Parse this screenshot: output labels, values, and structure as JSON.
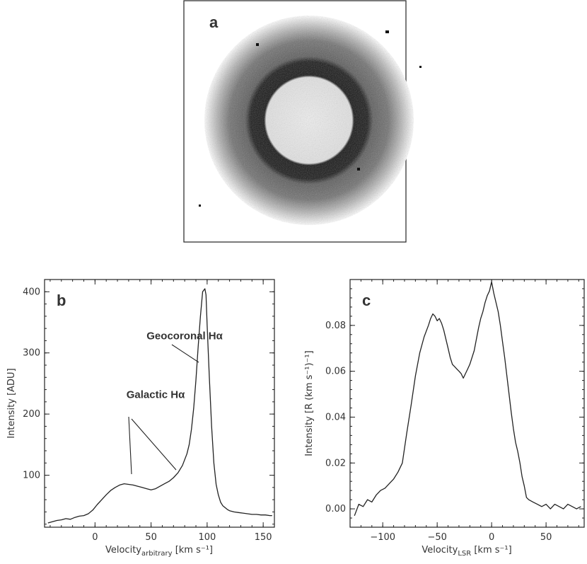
{
  "panels": {
    "a": {
      "label": "a"
    },
    "b": {
      "label": "b"
    },
    "c": {
      "label": "c"
    }
  },
  "chart_data": [
    {
      "panel": "b",
      "type": "line",
      "ylabel": "Intensity [ADU]",
      "xlabel_main": "Velocity",
      "xlabel_sub": "arbitrary",
      "xlabel_unit": "[km s⁻¹]",
      "xlim": [
        -45,
        160
      ],
      "ylim": [
        15,
        420
      ],
      "xticks": [
        0,
        50,
        100,
        150
      ],
      "yticks": [
        100,
        200,
        300,
        400
      ],
      "annotations": [
        {
          "text": "Geocoronal Hα",
          "x": 46,
          "y": 322
        },
        {
          "text": "Galactic Hα",
          "x": 28,
          "y": 226
        }
      ],
      "series": [
        {
          "x": [
            -42,
            -38,
            -34,
            -30,
            -26,
            -22,
            -18,
            -14,
            -10,
            -6,
            -2,
            2,
            6,
            10,
            14,
            18,
            22,
            26,
            30,
            34,
            38,
            42,
            46,
            50,
            54,
            58,
            62,
            66,
            70,
            74,
            78,
            82,
            84,
            86,
            88,
            90,
            92,
            94,
            96,
            98,
            99,
            100,
            102,
            104,
            106,
            108,
            110,
            112,
            114,
            116,
            118,
            120,
            124,
            128,
            132,
            136,
            140,
            144,
            148,
            152,
            156,
            158
          ],
          "y": [
            22,
            24,
            26,
            27,
            29,
            28,
            31,
            33,
            34,
            37,
            43,
            52,
            60,
            68,
            75,
            80,
            84,
            86,
            85,
            84,
            82,
            80,
            78,
            76,
            78,
            82,
            86,
            90,
            96,
            104,
            116,
            135,
            150,
            175,
            210,
            255,
            310,
            360,
            400,
            405,
            395,
            345,
            260,
            180,
            120,
            85,
            68,
            56,
            50,
            47,
            44,
            42,
            40,
            39,
            38,
            37,
            36,
            36,
            35,
            35,
            34,
            34
          ]
        }
      ]
    },
    {
      "panel": "c",
      "type": "line",
      "ylabel": "Intensity [R (km s⁻¹)⁻¹]",
      "xlabel_main": "Velocity",
      "xlabel_sub": "LSR",
      "xlabel_unit": "[km s⁻¹]",
      "xlim": [
        -130,
        85
      ],
      "ylim": [
        -0.008,
        0.1
      ],
      "xticks": [
        -100,
        -50,
        0,
        50
      ],
      "yticks": [
        0.0,
        0.02,
        0.04,
        0.06,
        0.08
      ],
      "ytick_labels": [
        "0.00",
        "0.02",
        "0.04",
        "0.06",
        "0.08"
      ],
      "series": [
        {
          "x": [
            -126,
            -122,
            -118,
            -114,
            -110,
            -106,
            -102,
            -98,
            -94,
            -90,
            -86,
            -82,
            -78,
            -74,
            -70,
            -66,
            -62,
            -58,
            -56,
            -54,
            -52,
            -50,
            -48,
            -46,
            -44,
            -42,
            -40,
            -38,
            -36,
            -34,
            -32,
            -30,
            -28,
            -26,
            -24,
            -22,
            -20,
            -18,
            -16,
            -14,
            -12,
            -10,
            -8,
            -6,
            -4,
            -2,
            0,
            2,
            4,
            6,
            8,
            10,
            12,
            14,
            16,
            18,
            20,
            22,
            24,
            26,
            28,
            30,
            32,
            34,
            38,
            42,
            46,
            50,
            54,
            58,
            62,
            66,
            70,
            74,
            78,
            82
          ],
          "y": [
            -0.003,
            0.002,
            0.001,
            0.004,
            0.003,
            0.006,
            0.008,
            0.009,
            0.011,
            0.013,
            0.016,
            0.02,
            0.033,
            0.045,
            0.058,
            0.068,
            0.075,
            0.08,
            0.083,
            0.085,
            0.084,
            0.082,
            0.083,
            0.081,
            0.078,
            0.074,
            0.07,
            0.066,
            0.063,
            0.062,
            0.061,
            0.06,
            0.059,
            0.057,
            0.059,
            0.061,
            0.063,
            0.066,
            0.069,
            0.074,
            0.079,
            0.083,
            0.086,
            0.09,
            0.093,
            0.095,
            0.099,
            0.094,
            0.09,
            0.086,
            0.08,
            0.073,
            0.066,
            0.058,
            0.05,
            0.042,
            0.035,
            0.029,
            0.025,
            0.02,
            0.014,
            0.01,
            0.005,
            0.004,
            0.003,
            0.002,
            0.001,
            0.002,
            0.0,
            0.002,
            0.001,
            0.0,
            0.002,
            0.001,
            0.0,
            0.001
          ]
        }
      ]
    }
  ]
}
